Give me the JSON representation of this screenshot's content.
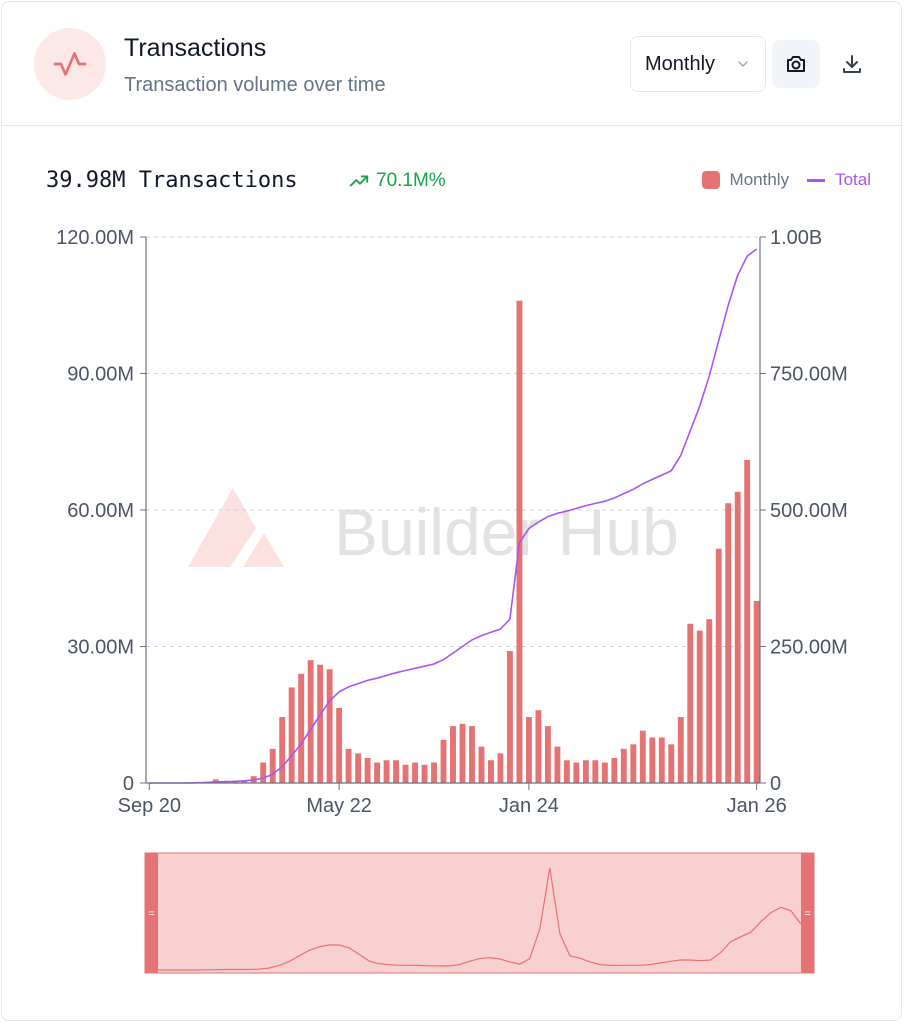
{
  "header": {
    "title": "Transactions",
    "subtitle": "Transaction volume over time",
    "period_select": {
      "value": "Monthly"
    },
    "icons": {
      "chart": "activity-icon",
      "camera": "camera-icon",
      "download": "download-icon",
      "chevron": "chevron-down-icon"
    }
  },
  "summary": {
    "value_label": "39.98M Transactions",
    "growth": "70.1M%",
    "growth_color": "#16a34a"
  },
  "watermark": "Builder Hub",
  "colors": {
    "bar": "#e57373",
    "line": "#a855f7",
    "brush_fill": "#f8d0d0",
    "brush_handle": "#e57373"
  },
  "chart_data": {
    "type": "bar",
    "legend": [
      "Monthly",
      "Total"
    ],
    "legend_position": "top-right",
    "x_ticks": [
      "Sep 20",
      "May 22",
      "Jan 24",
      "Jan 26"
    ],
    "x_tick_index": [
      0,
      20,
      40,
      64
    ],
    "y_left": {
      "min": 0,
      "max": 120000000,
      "ticks": [
        "0",
        "30.00M",
        "60.00M",
        "90.00M",
        "120.00M"
      ]
    },
    "y_right": {
      "min": 0,
      "max": 1000000000,
      "ticks": [
        "0",
        "250.00M",
        "500.00M",
        "750.00M",
        "1.00B"
      ]
    },
    "grid": true,
    "months": [
      "2020-09",
      "2020-10",
      "2020-11",
      "2020-12",
      "2021-01",
      "2021-02",
      "2021-03",
      "2021-04",
      "2021-05",
      "2021-06",
      "2021-07",
      "2021-08",
      "2021-09",
      "2021-10",
      "2021-11",
      "2021-12",
      "2022-01",
      "2022-02",
      "2022-03",
      "2022-04",
      "2022-05",
      "2022-06",
      "2022-07",
      "2022-08",
      "2022-09",
      "2022-10",
      "2022-11",
      "2022-12",
      "2023-01",
      "2023-02",
      "2023-03",
      "2023-04",
      "2023-05",
      "2023-06",
      "2023-07",
      "2023-08",
      "2023-09",
      "2023-10",
      "2023-11",
      "2023-12",
      "2024-01",
      "2024-02",
      "2024-03",
      "2024-04",
      "2024-05",
      "2024-06",
      "2024-07",
      "2024-08",
      "2024-09",
      "2024-10",
      "2024-11",
      "2024-12",
      "2025-01",
      "2025-02",
      "2025-03",
      "2025-04",
      "2025-05",
      "2025-06",
      "2025-07",
      "2025-08",
      "2025-09",
      "2025-10",
      "2025-11",
      "2025-12",
      "2026-01"
    ],
    "series": [
      {
        "name": "Monthly",
        "type": "bar",
        "axis": "left",
        "values": [
          0,
          0,
          0,
          0,
          0,
          0.2,
          0.3,
          0.8,
          0.3,
          0.5,
          0.6,
          1.5,
          4.5,
          7.5,
          14.5,
          21,
          24,
          27,
          26,
          25,
          16.5,
          7.5,
          6.5,
          5.5,
          4.5,
          5,
          5,
          4,
          4.5,
          4,
          4.5,
          9.5,
          12.5,
          13,
          12.5,
          8,
          5,
          6.5,
          29,
          106,
          14.5,
          16,
          12.5,
          8,
          5,
          4.5,
          5,
          5,
          4.5,
          5.5,
          7.5,
          8.5,
          11.5,
          10,
          10,
          8.5,
          14.5,
          35,
          33.5,
          36,
          51.5,
          61.5,
          64,
          71,
          40
        ]
      },
      {
        "name": "Total",
        "type": "line",
        "axis": "right",
        "values": [
          0,
          0,
          0,
          0,
          0,
          0.5,
          1,
          2,
          2.5,
          3,
          4,
          5.5,
          9,
          16,
          30,
          50,
          72,
          98,
          125,
          150,
          167,
          176,
          182,
          188,
          192,
          197,
          202,
          206,
          210,
          214,
          218,
          226,
          238,
          250,
          262,
          270,
          276,
          282,
          300,
          440,
          466,
          478,
          488,
          494,
          498,
          503,
          508,
          512,
          516,
          522,
          530,
          538,
          548,
          556,
          564,
          572,
          600,
          645,
          690,
          745,
          810,
          875,
          930,
          965,
          978
        ]
      }
    ]
  }
}
